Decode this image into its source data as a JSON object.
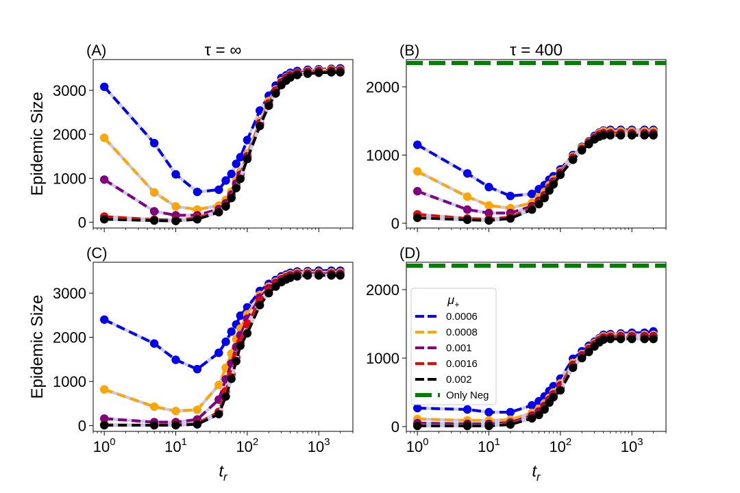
{
  "figure": {
    "xlabel": "t",
    "xlabel_sub": "r",
    "ylabel": "Epidemic Size"
  },
  "legend": {
    "title": "μ",
    "title_sub": "+",
    "entries": [
      {
        "label": "0.0006",
        "color": "#0000ee"
      },
      {
        "label": "0.0008",
        "color": "#ffa500"
      },
      {
        "label": "0.001",
        "color": "#800080"
      },
      {
        "label": "0.0016",
        "color": "#ee0000"
      },
      {
        "label": "0.002",
        "color": "#000000"
      },
      {
        "label": "Only Neg",
        "color": "#008000"
      }
    ]
  },
  "chart_data": [
    {
      "panel": "(A)",
      "title": "τ = ∞",
      "type": "line",
      "xscale": "log",
      "xlim": [
        0.7,
        3000
      ],
      "ylim": [
        -130,
        3700
      ],
      "yticks": [
        0,
        1000,
        2000,
        3000
      ],
      "xticks_exp": [
        "0",
        "1",
        "2",
        "3"
      ],
      "x": [
        1,
        5,
        10,
        20,
        40,
        50,
        60,
        70,
        80,
        100,
        150,
        200,
        250,
        300,
        350,
        400,
        500,
        700,
        1000,
        1500,
        2000
      ],
      "series": [
        {
          "name": "0.0006",
          "values": [
            3080,
            1800,
            1090,
            690,
            740,
            950,
            1100,
            1330,
            1480,
            1870,
            2540,
            2880,
            3110,
            3280,
            3340,
            3400,
            3440,
            3470,
            3480,
            3490,
            3500
          ]
        },
        {
          "name": "0.0008",
          "values": [
            1920,
            680,
            360,
            290,
            380,
            510,
            700,
            950,
            1150,
            1560,
            2300,
            2760,
            3020,
            3210,
            3300,
            3360,
            3400,
            3440,
            3460,
            3470,
            3470
          ]
        },
        {
          "name": "0.001",
          "values": [
            970,
            250,
            160,
            160,
            300,
            430,
            630,
            880,
            1080,
            1500,
            2250,
            2700,
            2990,
            3180,
            3280,
            3340,
            3390,
            3420,
            3440,
            3450,
            3450
          ]
        },
        {
          "name": "0.0016",
          "values": [
            130,
            60,
            50,
            100,
            250,
            380,
            570,
            800,
            1010,
            1460,
            2220,
            2680,
            2960,
            3150,
            3250,
            3310,
            3370,
            3400,
            3420,
            3430,
            3430
          ]
        },
        {
          "name": "0.002",
          "values": [
            70,
            40,
            30,
            70,
            230,
            360,
            550,
            780,
            990,
            1440,
            2190,
            2650,
            2930,
            3120,
            3220,
            3290,
            3350,
            3380,
            3400,
            3410,
            3410
          ]
        }
      ],
      "hline": null
    },
    {
      "panel": "(B)",
      "title": "τ = 400",
      "type": "line",
      "xscale": "log",
      "xlim": [
        0.7,
        3000
      ],
      "ylim": [
        -70,
        2400
      ],
      "yticks": [
        0,
        1000,
        2000
      ],
      "xticks_exp": [
        "0",
        "1",
        "2",
        "3"
      ],
      "x": [
        1,
        5,
        10,
        20,
        40,
        50,
        60,
        70,
        80,
        100,
        150,
        200,
        250,
        300,
        350,
        400,
        500,
        700,
        1000,
        1500,
        2000
      ],
      "series": [
        {
          "name": "0.0006",
          "values": [
            1150,
            730,
            530,
            400,
            430,
            500,
            560,
            640,
            690,
            790,
            1000,
            1120,
            1200,
            1280,
            1330,
            1360,
            1370,
            1370,
            1370,
            1370,
            1370
          ]
        },
        {
          "name": "0.0008",
          "values": [
            760,
            390,
            260,
            220,
            300,
            380,
            460,
            560,
            640,
            760,
            980,
            1110,
            1190,
            1260,
            1320,
            1350,
            1350,
            1350,
            1350,
            1350,
            1350
          ]
        },
        {
          "name": "0.001",
          "values": [
            470,
            200,
            150,
            150,
            250,
            330,
            410,
            520,
            610,
            740,
            960,
            1090,
            1180,
            1250,
            1300,
            1320,
            1320,
            1320,
            1320,
            1320,
            1320
          ]
        },
        {
          "name": "0.0016",
          "values": [
            130,
            70,
            60,
            90,
            220,
            300,
            390,
            500,
            590,
            720,
            950,
            1080,
            1170,
            1240,
            1290,
            1300,
            1300,
            1300,
            1300,
            1300,
            1300
          ]
        },
        {
          "name": "0.002",
          "values": [
            80,
            50,
            40,
            70,
            200,
            280,
            370,
            480,
            570,
            710,
            930,
            1070,
            1160,
            1230,
            1270,
            1290,
            1290,
            1290,
            1290,
            1290,
            1290
          ]
        }
      ],
      "hline": {
        "name": "Only Neg",
        "value": 2350
      }
    },
    {
      "panel": "(C)",
      "title": "",
      "type": "line",
      "xscale": "log",
      "xlim": [
        0.7,
        3000
      ],
      "ylim": [
        -130,
        3700
      ],
      "yticks": [
        0,
        1000,
        2000,
        3000
      ],
      "xticks_exp": [
        "0",
        "1",
        "2",
        "3"
      ],
      "x": [
        1,
        5,
        10,
        20,
        40,
        50,
        60,
        70,
        80,
        100,
        150,
        200,
        250,
        300,
        350,
        400,
        500,
        700,
        1000,
        1500,
        2000
      ],
      "series": [
        {
          "name": "0.0006",
          "values": [
            2400,
            1860,
            1490,
            1280,
            1650,
            1900,
            2130,
            2290,
            2490,
            2680,
            3050,
            3210,
            3300,
            3380,
            3420,
            3460,
            3490,
            3500,
            3510,
            3510,
            3510
          ]
        },
        {
          "name": "0.0008",
          "values": [
            820,
            430,
            330,
            360,
            920,
            1310,
            1630,
            1960,
            2200,
            2520,
            2960,
            3150,
            3260,
            3340,
            3390,
            3430,
            3460,
            3470,
            3470,
            3470,
            3470
          ]
        },
        {
          "name": "0.001",
          "values": [
            160,
            80,
            80,
            140,
            590,
            1050,
            1410,
            1780,
            2050,
            2420,
            2900,
            3110,
            3230,
            3310,
            3360,
            3400,
            3430,
            3440,
            3440,
            3440,
            3440
          ]
        },
        {
          "name": "0.0016",
          "values": [
            20,
            10,
            20,
            50,
            310,
            780,
            1160,
            1550,
            1890,
            2290,
            2830,
            3060,
            3190,
            3280,
            3340,
            3370,
            3400,
            3410,
            3410,
            3410,
            3410
          ]
        },
        {
          "name": "0.002",
          "values": [
            10,
            10,
            10,
            30,
            260,
            660,
            1060,
            1460,
            1810,
            2090,
            2730,
            3000,
            3150,
            3250,
            3310,
            3350,
            3380,
            3400,
            3400,
            3400,
            3400
          ]
        }
      ],
      "hline": null
    },
    {
      "panel": "(D)",
      "title": "",
      "type": "line",
      "xscale": "log",
      "xlim": [
        0.7,
        3000
      ],
      "ylim": [
        -70,
        2400
      ],
      "yticks": [
        0,
        1000,
        2000
      ],
      "xticks_exp": [
        "0",
        "1",
        "2",
        "3"
      ],
      "x": [
        1,
        5,
        10,
        20,
        40,
        50,
        60,
        70,
        80,
        100,
        150,
        200,
        250,
        300,
        350,
        400,
        500,
        700,
        1000,
        1500,
        2000
      ],
      "series": [
        {
          "name": "0.0006",
          "values": [
            270,
            250,
            210,
            210,
            310,
            370,
            440,
            520,
            590,
            700,
            990,
            1100,
            1180,
            1240,
            1290,
            1340,
            1350,
            1360,
            1370,
            1370,
            1390
          ]
        },
        {
          "name": "0.0008",
          "values": [
            110,
            90,
            90,
            100,
            200,
            260,
            340,
            420,
            500,
            630,
            930,
            1060,
            1150,
            1220,
            1280,
            1320,
            1330,
            1340,
            1340,
            1340,
            1340
          ]
        },
        {
          "name": "0.001",
          "values": [
            50,
            40,
            40,
            60,
            160,
            220,
            300,
            390,
            470,
            600,
            900,
            1040,
            1130,
            1200,
            1260,
            1300,
            1310,
            1320,
            1320,
            1320,
            1320
          ]
        },
        {
          "name": "0.0016",
          "values": [
            20,
            10,
            10,
            40,
            130,
            190,
            270,
            370,
            450,
            570,
            880,
            1020,
            1110,
            1190,
            1240,
            1290,
            1300,
            1300,
            1300,
            1300,
            1300
          ]
        },
        {
          "name": "0.002",
          "values": [
            10,
            10,
            10,
            30,
            120,
            170,
            250,
            350,
            430,
            530,
            860,
            1000,
            1090,
            1170,
            1230,
            1270,
            1280,
            1280,
            1280,
            1280,
            1280
          ]
        }
      ],
      "hline": {
        "name": "Only Neg",
        "value": 2350
      }
    }
  ]
}
